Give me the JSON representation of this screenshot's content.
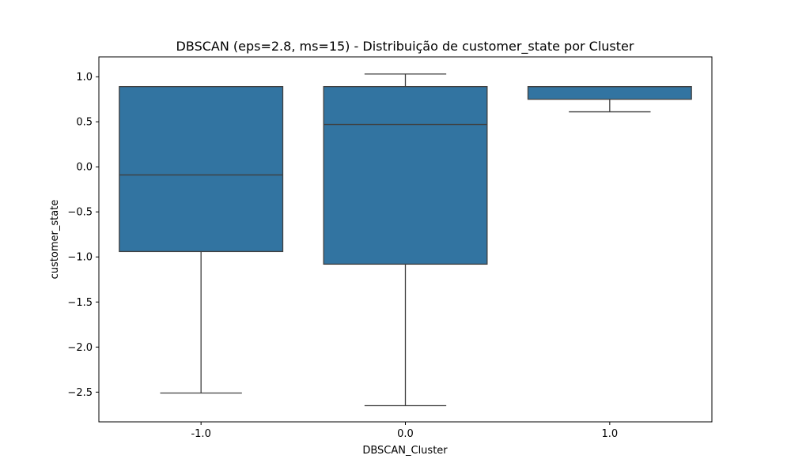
{
  "chart_data": {
    "type": "box",
    "title": "DBSCAN (eps=2.8, ms=15)  - Distribuição de customer_state por Cluster",
    "xlabel": "DBSCAN_Cluster",
    "ylabel": "customer_state",
    "categories": [
      "-1.0",
      "0.0",
      "1.0"
    ],
    "boxes": [
      {
        "category": "-1.0",
        "whisker_low": -2.51,
        "q1": -0.94,
        "median": -0.09,
        "q3": 0.89,
        "whisker_high": 0.89
      },
      {
        "category": "0.0",
        "whisker_low": -2.65,
        "q1": -1.08,
        "median": 0.47,
        "q3": 0.89,
        "whisker_high": 1.03
      },
      {
        "category": "1.0",
        "whisker_low": 0.61,
        "q1": 0.75,
        "median": 0.89,
        "q3": 0.89,
        "whisker_high": 0.89
      }
    ],
    "ylim": [
      -2.83,
      1.22
    ],
    "yticks": [
      1.0,
      0.5,
      0.0,
      -0.5,
      -1.0,
      -1.5,
      -2.0,
      -2.5
    ],
    "ytick_labels": [
      "1.0",
      "0.5",
      "0.0",
      "−0.5",
      "−1.0",
      "−1.5",
      "−2.0",
      "−2.5"
    ],
    "box_color": "#3274a1",
    "line_color": "#3f3f3f",
    "grid": false,
    "legend": "none"
  }
}
